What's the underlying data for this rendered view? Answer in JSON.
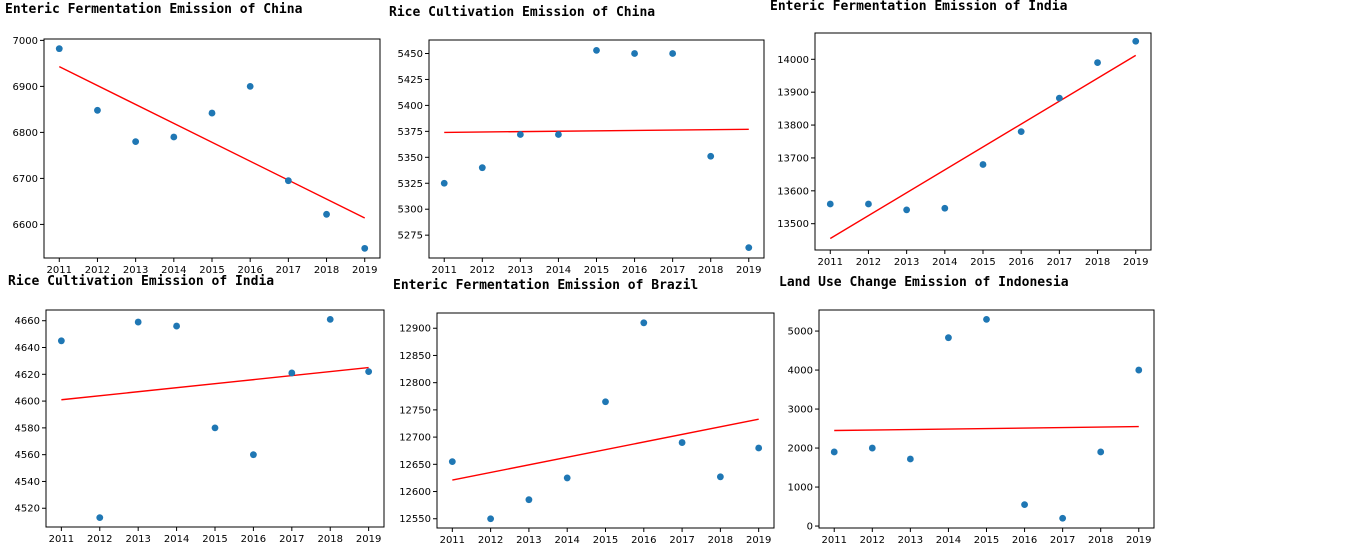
{
  "chart_data": [
    {
      "type": "scatter",
      "title": "Enteric Fermentation Emission of China",
      "x": [
        2011,
        2012,
        2013,
        2014,
        2015,
        2016,
        2017,
        2018,
        2019
      ],
      "y": [
        6982,
        6848,
        6780,
        6790,
        6842,
        6900,
        6695,
        6622,
        6548
      ],
      "trendline": {
        "start": [
          2011,
          6943
        ],
        "end": [
          2019,
          6614
        ],
        "color": "#ff0000"
      },
      "xticks": [
        2011,
        2012,
        2013,
        2014,
        2015,
        2016,
        2017,
        2018,
        2019
      ],
      "yticks": [
        6600,
        6700,
        6800,
        6900,
        7000
      ],
      "xlim": [
        2010.6,
        2019.4
      ],
      "ylim": [
        6527,
        7003
      ],
      "point_color": "#1f77b4"
    },
    {
      "type": "scatter",
      "title": "Rice Cultivation Emission of China",
      "x": [
        2011,
        2012,
        2013,
        2014,
        2015,
        2016,
        2017,
        2018,
        2019
      ],
      "y": [
        5325,
        5340,
        5372,
        5372,
        5453,
        5450,
        5450,
        5351,
        5263
      ],
      "trendline": {
        "start": [
          2011,
          5374
        ],
        "end": [
          2019,
          5377
        ],
        "color": "#ff0000"
      },
      "xticks": [
        2011,
        2012,
        2013,
        2014,
        2015,
        2016,
        2017,
        2018,
        2019
      ],
      "yticks": [
        5275,
        5300,
        5325,
        5350,
        5375,
        5400,
        5425,
        5450
      ],
      "xlim": [
        2010.6,
        2019.4
      ],
      "ylim": [
        5253,
        5463
      ],
      "point_color": "#1f77b4"
    },
    {
      "type": "scatter",
      "title": "Enteric Fermentation Emission of India",
      "x": [
        2011,
        2012,
        2013,
        2014,
        2015,
        2016,
        2017,
        2018,
        2019
      ],
      "y": [
        13560,
        13560,
        13542,
        13547,
        13680,
        13780,
        13882,
        13990,
        14055
      ],
      "trendline": {
        "start": [
          2011,
          13455
        ],
        "end": [
          2019,
          14012
        ],
        "color": "#ff0000"
      },
      "xticks": [
        2011,
        2012,
        2013,
        2014,
        2015,
        2016,
        2017,
        2018,
        2019
      ],
      "yticks": [
        13500,
        13600,
        13700,
        13800,
        13900,
        14000
      ],
      "xlim": [
        2010.6,
        2019.4
      ],
      "ylim": [
        13420,
        14080
      ],
      "point_color": "#1f77b4"
    },
    {
      "type": "scatter",
      "title": "Rice Cultivation Emission of India",
      "x": [
        2011,
        2012,
        2013,
        2014,
        2015,
        2016,
        2017,
        2018,
        2019
      ],
      "y": [
        4645,
        4513,
        4659,
        4656,
        4580,
        4560,
        4621,
        4661,
        4622
      ],
      "trendline": {
        "start": [
          2011,
          4601
        ],
        "end": [
          2019,
          4625
        ],
        "color": "#ff0000"
      },
      "xticks": [
        2011,
        2012,
        2013,
        2014,
        2015,
        2016,
        2017,
        2018,
        2019
      ],
      "yticks": [
        4520,
        4540,
        4560,
        4580,
        4600,
        4620,
        4640,
        4660
      ],
      "xlim": [
        2010.6,
        2019.4
      ],
      "ylim": [
        4506,
        4668
      ],
      "point_color": "#1f77b4"
    },
    {
      "type": "scatter",
      "title": "Enteric Fermentation Emission of Brazil",
      "x": [
        2011,
        2012,
        2013,
        2014,
        2015,
        2016,
        2017,
        2018,
        2019
      ],
      "y": [
        12655,
        12550,
        12585,
        12625,
        12765,
        12910,
        12690,
        12627,
        12680
      ],
      "trendline": {
        "start": [
          2011,
          12621
        ],
        "end": [
          2019,
          12733
        ],
        "color": "#ff0000"
      },
      "xticks": [
        2011,
        2012,
        2013,
        2014,
        2015,
        2016,
        2017,
        2018,
        2019
      ],
      "yticks": [
        12550,
        12600,
        12650,
        12700,
        12750,
        12800,
        12850,
        12900
      ],
      "xlim": [
        2010.6,
        2019.4
      ],
      "ylim": [
        12533,
        12928
      ],
      "point_color": "#1f77b4"
    },
    {
      "type": "scatter",
      "title": "Land Use Change Emission of Indonesia",
      "x": [
        2011,
        2012,
        2013,
        2014,
        2015,
        2016,
        2017,
        2018,
        2019
      ],
      "y": [
        1900,
        2000,
        1720,
        4830,
        5300,
        550,
        200,
        1900,
        4000
      ],
      "trendline": {
        "start": [
          2011,
          2450
        ],
        "end": [
          2019,
          2550
        ],
        "color": "#ff0000"
      },
      "xticks": [
        2011,
        2012,
        2013,
        2014,
        2015,
        2016,
        2017,
        2018,
        2019
      ],
      "yticks": [
        0,
        1000,
        2000,
        3000,
        4000,
        5000
      ],
      "xlim": [
        2010.6,
        2019.4
      ],
      "ylim": [
        -50,
        5540
      ],
      "point_color": "#1f77b4"
    }
  ]
}
